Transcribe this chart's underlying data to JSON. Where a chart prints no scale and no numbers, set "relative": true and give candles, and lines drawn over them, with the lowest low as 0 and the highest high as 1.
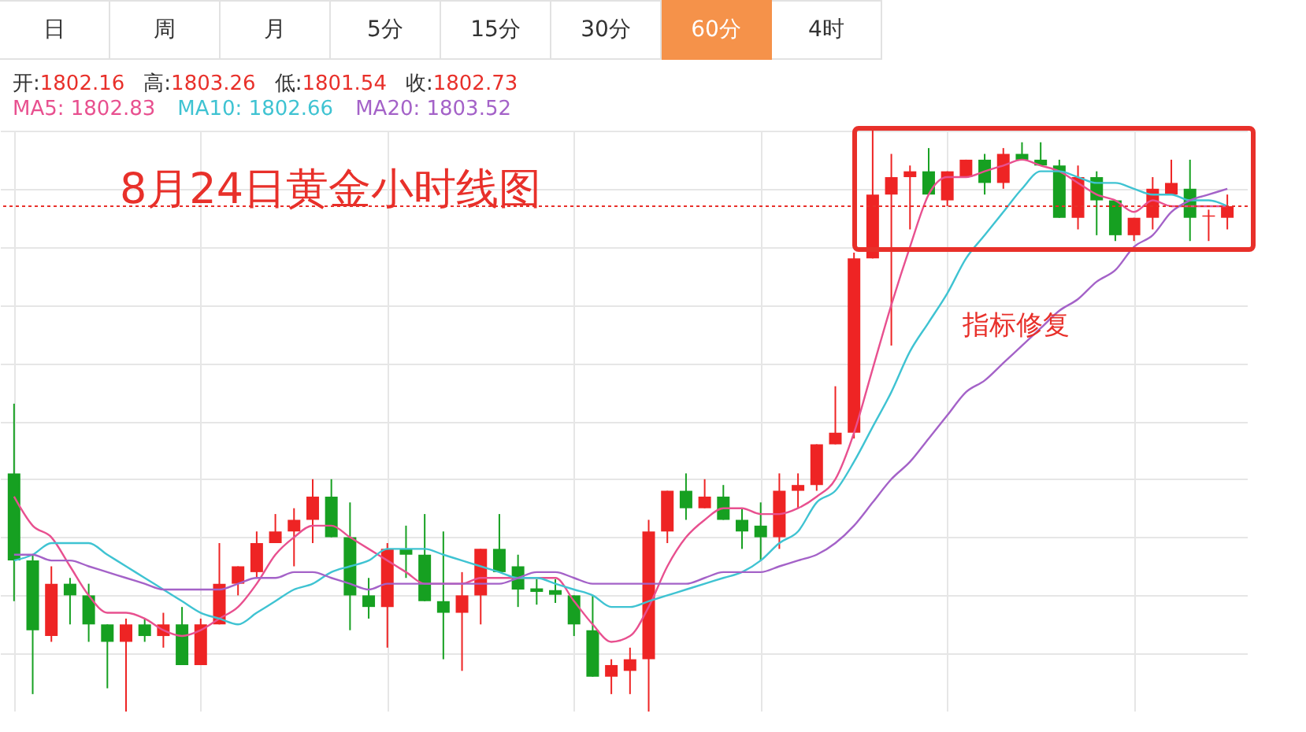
{
  "chart_data": {
    "type": "candlestick",
    "title": "8月24日黄金小时线图",
    "relative": true,
    "grid": true,
    "legend": "top left",
    "annotations": [
      "日",
      "周",
      "月",
      "5分",
      "15分",
      "30分",
      "60分",
      "4时",
      "开:1802.16",
      "高:1803.26",
      "低:1801.54",
      "收:1802.73",
      "指标修复"
    ],
    "categories": [
      null,
      null,
      null,
      null,
      null,
      null,
      null,
      null,
      null,
      null,
      null,
      null,
      null,
      null,
      null,
      null,
      null,
      null,
      null,
      null,
      null,
      null,
      null,
      null,
      null,
      null,
      null,
      null,
      null,
      null,
      null,
      null,
      null,
      null,
      null,
      null,
      null,
      null,
      null,
      null,
      null,
      null,
      null,
      null,
      null,
      null,
      null,
      null,
      null,
      null,
      null,
      null,
      null,
      null,
      null,
      null,
      null,
      null,
      null,
      null,
      null,
      null,
      null,
      null,
      null,
      null
    ],
    "ohlc": [
      [
        0.41,
        0.53,
        0.19,
        0.26
      ],
      [
        0.26,
        0.27,
        0.03,
        0.14
      ],
      [
        0.13,
        0.25,
        0.12,
        0.22
      ],
      [
        0.22,
        0.23,
        0.15,
        0.2
      ],
      [
        0.2,
        0.22,
        0.12,
        0.15
      ],
      [
        0.15,
        0.15,
        0.04,
        0.12
      ],
      [
        0.12,
        0.16,
        0,
        0.15
      ],
      [
        0.15,
        0.16,
        0.12,
        0.13
      ],
      [
        0.13,
        0.17,
        0.11,
        0.15
      ],
      [
        0.15,
        0.18,
        0.08,
        0.08
      ],
      [
        0.08,
        0.16,
        0.08,
        0.15
      ],
      [
        0.15,
        0.29,
        0.15,
        0.22
      ],
      [
        0.22,
        0.25,
        0.2,
        0.25
      ],
      [
        0.24,
        0.31,
        0.23,
        0.29
      ],
      [
        0.29,
        0.34,
        0.29,
        0.31
      ],
      [
        0.31,
        0.35,
        0.25,
        0.33
      ],
      [
        0.33,
        0.4,
        0.29,
        0.37
      ],
      [
        0.37,
        0.4,
        0.3,
        0.3
      ],
      [
        0.3,
        0.36,
        0.14,
        0.2
      ],
      [
        0.2,
        0.23,
        0.16,
        0.18
      ],
      [
        0.18,
        0.29,
        0.11,
        0.28
      ],
      [
        0.28,
        0.32,
        0.23,
        0.27
      ],
      [
        0.27,
        0.34,
        0.19,
        0.19
      ],
      [
        0.19,
        0.31,
        0.09,
        0.17
      ],
      [
        0.17,
        0.24,
        0.07,
        0.2
      ],
      [
        0.2,
        0.28,
        0.15,
        0.28
      ],
      [
        0.28,
        0.34,
        0.24,
        0.24
      ],
      [
        0.25,
        0.27,
        0.18,
        0.21
      ],
      [
        0.212,
        0.228,
        0.184,
        0.206
      ],
      [
        0.209,
        0.228,
        0.187,
        0.201
      ],
      [
        0.2,
        0.2,
        0.13,
        0.15
      ],
      [
        0.14,
        0.2,
        0.06,
        0.06
      ],
      [
        0.06,
        0.09,
        0.03,
        0.08
      ],
      [
        0.07,
        0.11,
        0.03,
        0.09
      ],
      [
        0.09,
        0.33,
        0,
        0.31
      ],
      [
        0.31,
        0.38,
        0.29,
        0.38
      ],
      [
        0.38,
        0.41,
        0.33,
        0.35
      ],
      [
        0.35,
        0.4,
        0.35,
        0.37
      ],
      [
        0.37,
        0.39,
        0.33,
        0.33
      ],
      [
        0.33,
        0.35,
        0.28,
        0.31
      ],
      [
        0.32,
        0.36,
        0.26,
        0.3
      ],
      [
        0.3,
        0.41,
        0.28,
        0.38
      ],
      [
        0.38,
        0.41,
        0.35,
        0.39
      ],
      [
        0.39,
        0.46,
        0.38,
        0.46
      ],
      [
        0.46,
        0.56,
        0.46,
        0.48
      ],
      [
        0.48,
        0.79,
        0.47,
        0.78
      ],
      [
        0.78,
        1,
        0.78,
        0.89
      ],
      [
        0.89,
        0.96,
        0.63,
        0.92
      ],
      [
        0.92,
        0.94,
        0.83,
        0.93
      ],
      [
        0.93,
        0.97,
        0.89,
        0.89
      ],
      [
        0.88,
        0.93,
        0.87,
        0.93
      ],
      [
        0.92,
        0.95,
        0.92,
        0.95
      ],
      [
        0.95,
        0.96,
        0.89,
        0.91
      ],
      [
        0.91,
        0.97,
        0.9,
        0.96
      ],
      [
        0.96,
        0.98,
        0.95,
        0.95
      ],
      [
        0.95,
        0.98,
        0.94,
        0.94
      ],
      [
        0.94,
        0.95,
        0.85,
        0.85
      ],
      [
        0.85,
        0.94,
        0.83,
        0.92
      ],
      [
        0.92,
        0.93,
        0.82,
        0.88
      ],
      [
        0.88,
        0.88,
        0.81,
        0.82
      ],
      [
        0.82,
        0.85,
        0.81,
        0.85
      ],
      [
        0.85,
        0.92,
        0.83,
        0.9
      ],
      [
        0.89,
        0.95,
        0.89,
        0.91
      ],
      [
        0.9,
        0.95,
        0.81,
        0.85
      ],
      [
        0.852,
        0.864,
        0.81,
        0.854
      ],
      [
        0.85,
        0.89,
        0.83,
        0.87
      ]
    ],
    "series": [
      {
        "name": "MA5: 1802.83",
        "type": "line",
        "color": "#e8508f",
        "values": [
          0.37,
          0.32,
          0.3,
          0.25,
          0.2,
          0.17,
          0.17,
          0.16,
          0.14,
          0.13,
          0.14,
          0.16,
          0.18,
          0.22,
          0.27,
          0.3,
          0.32,
          0.32,
          0.3,
          0.28,
          0.26,
          0.24,
          0.22,
          0.22,
          0.22,
          0.23,
          0.23,
          0.23,
          0.23,
          0.23,
          0.19,
          0.15,
          0.12,
          0.13,
          0.18,
          0.25,
          0.3,
          0.33,
          0.35,
          0.35,
          0.34,
          0.34,
          0.35,
          0.37,
          0.4,
          0.48,
          0.59,
          0.7,
          0.8,
          0.89,
          0.92,
          0.92,
          0.93,
          0.94,
          0.95,
          0.94,
          0.93,
          0.91,
          0.89,
          0.88,
          0.86,
          0.88,
          0.87,
          0.87,
          0.87,
          0.87
        ]
      },
      {
        "name": "MA10: 1802.66",
        "type": "line",
        "color": "#3fc3d2",
        "values": [
          0.26,
          0.27,
          0.29,
          0.29,
          0.29,
          0.27,
          0.25,
          0.23,
          0.21,
          0.19,
          0.17,
          0.16,
          0.15,
          0.17,
          0.19,
          0.21,
          0.22,
          0.24,
          0.25,
          0.26,
          0.28,
          0.28,
          0.28,
          0.27,
          0.26,
          0.25,
          0.24,
          0.23,
          0.23,
          0.22,
          0.21,
          0.2,
          0.18,
          0.18,
          0.19,
          0.2,
          0.21,
          0.22,
          0.23,
          0.24,
          0.26,
          0.29,
          0.31,
          0.36,
          0.38,
          0.43,
          0.49,
          0.55,
          0.62,
          0.67,
          0.72,
          0.78,
          0.82,
          0.86,
          0.9,
          0.93,
          0.93,
          0.92,
          0.91,
          0.91,
          0.9,
          0.89,
          0.89,
          0.88,
          0.88,
          0.87
        ]
      },
      {
        "name": "MA20: 1803.52",
        "type": "line",
        "color": "#a462c8",
        "values": [
          0.27,
          0.27,
          0.26,
          0.26,
          0.25,
          0.24,
          0.23,
          0.22,
          0.21,
          0.21,
          0.21,
          0.21,
          0.22,
          0.23,
          0.23,
          0.24,
          0.24,
          0.23,
          0.22,
          0.21,
          0.22,
          0.22,
          0.22,
          0.22,
          0.22,
          0.22,
          0.22,
          0.23,
          0.24,
          0.24,
          0.23,
          0.22,
          0.22,
          0.22,
          0.22,
          0.22,
          0.22,
          0.23,
          0.24,
          0.24,
          0.24,
          0.25,
          0.26,
          0.27,
          0.29,
          0.32,
          0.36,
          0.4,
          0.43,
          0.47,
          0.51,
          0.55,
          0.57,
          0.6,
          0.63,
          0.66,
          0.69,
          0.71,
          0.74,
          0.76,
          0.8,
          0.82,
          0.86,
          0.88,
          0.89,
          0.9
        ]
      }
    ],
    "ref_lines": [
      {
        "axis": "y",
        "value": 0.87,
        "color": "#e8302a",
        "line_style": "dotted"
      }
    ]
  }
}
